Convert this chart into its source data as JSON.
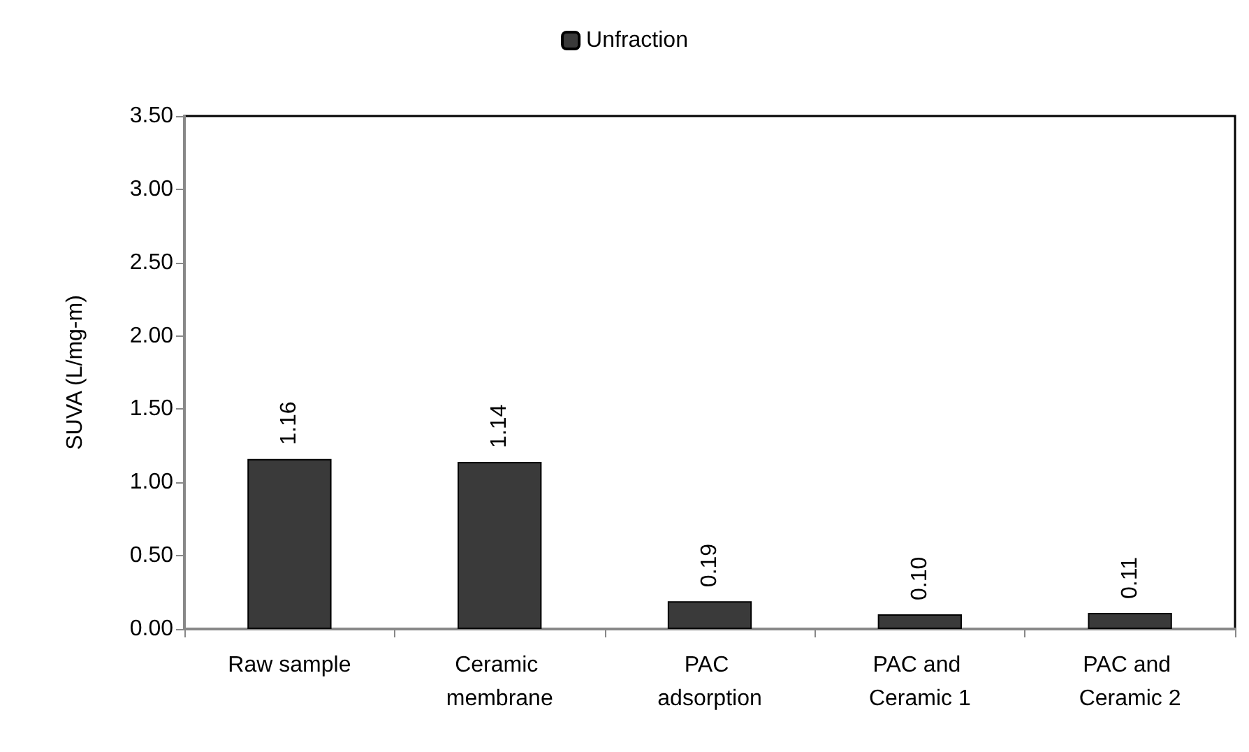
{
  "chart_data": {
    "type": "bar",
    "ylabel": "SUVA (L/mg-m)",
    "categories": [
      "Raw sample",
      "Ceramic membrane",
      "PAC adsorption",
      "PAC and Ceramic 1",
      "PAC and Ceramic 2"
    ],
    "series": [
      {
        "name": "Unfraction",
        "color": "#3a3a3a",
        "values": [
          1.16,
          1.14,
          0.19,
          0.1,
          0.11
        ],
        "value_labels": [
          "1.16",
          "1.14",
          "0.19",
          "0.10",
          "0.11"
        ]
      }
    ],
    "ylim": [
      0,
      3.5
    ],
    "yticks": [
      {
        "value": 0,
        "label": "0.00"
      },
      {
        "value": 0.5,
        "label": "0.50"
      },
      {
        "value": 1,
        "label": "1.00"
      },
      {
        "value": 1.5,
        "label": "1.50"
      },
      {
        "value": 2,
        "label": "2.00"
      },
      {
        "value": 2.5,
        "label": "2.50"
      },
      {
        "value": 3,
        "label": "3.00"
      },
      {
        "value": 3.5,
        "label": "3.50"
      }
    ],
    "legend": "top",
    "grid": false
  }
}
